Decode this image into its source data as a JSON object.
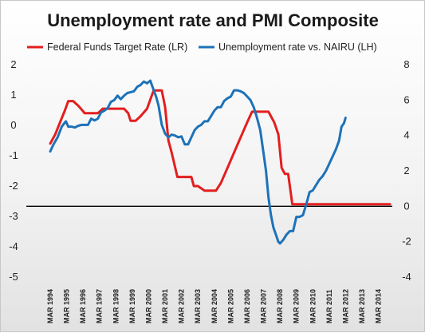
{
  "chart_data": {
    "type": "line",
    "title": "Unemployment rate and PMI Composite",
    "x": [
      "MAR 1994",
      "MAR 1995",
      "MAR 1996",
      "MAR 1997",
      "MAR 1998",
      "MAR 1999",
      "MAR 2000",
      "MAR 2001",
      "MAR 2002",
      "MAR 2003",
      "MAR 2004",
      "MAR 2005",
      "MAR 2006",
      "MAR 2007",
      "MAR 2008",
      "MAR 2009",
      "MAR 2010",
      "MAR 2011",
      "MAR 2012",
      "MAR 2013",
      "MAR 2014"
    ],
    "left_axis": {
      "ticks": [
        "2",
        "1",
        "0",
        "-1",
        "-2",
        "-3",
        "-4",
        "-5"
      ],
      "ylim": [
        -5,
        2
      ]
    },
    "right_axis": {
      "ticks": [
        "8",
        "6",
        "4",
        "2",
        "0",
        "-2",
        "-4"
      ],
      "ylim": [
        -4,
        8
      ]
    },
    "zero_line_right": 0,
    "series": [
      {
        "name": "Federal Funds Target Rate (LR)",
        "axis": "left",
        "color": "#e31e1e",
        "points": [
          [
            1994.0,
            -0.6
          ],
          [
            1994.3,
            -0.3
          ],
          [
            1994.6,
            0.1
          ],
          [
            1994.9,
            0.5
          ],
          [
            1995.1,
            0.8
          ],
          [
            1995.4,
            0.8
          ],
          [
            1995.7,
            0.65
          ],
          [
            1995.95,
            0.5
          ],
          [
            1996.1,
            0.4
          ],
          [
            1996.5,
            0.4
          ],
          [
            1996.9,
            0.4
          ],
          [
            1997.2,
            0.55
          ],
          [
            1997.6,
            0.55
          ],
          [
            1997.9,
            0.55
          ],
          [
            1998.2,
            0.55
          ],
          [
            1998.5,
            0.55
          ],
          [
            1998.75,
            0.4
          ],
          [
            1998.9,
            0.15
          ],
          [
            1999.2,
            0.15
          ],
          [
            1999.5,
            0.3
          ],
          [
            1999.9,
            0.55
          ],
          [
            2000.1,
            0.85
          ],
          [
            2000.3,
            1.15
          ],
          [
            2000.8,
            1.15
          ],
          [
            2001.0,
            0.6
          ],
          [
            2001.2,
            -0.5
          ],
          [
            2001.4,
            -0.9
          ],
          [
            2001.75,
            -1.7
          ],
          [
            2002.0,
            -1.7
          ],
          [
            2002.3,
            -1.7
          ],
          [
            2002.6,
            -1.7
          ],
          [
            2002.75,
            -2.0
          ],
          [
            2003.0,
            -2.0
          ],
          [
            2003.4,
            -2.15
          ],
          [
            2003.8,
            -2.15
          ],
          [
            2004.1,
            -2.15
          ],
          [
            2004.4,
            -1.9
          ],
          [
            2004.8,
            -1.4
          ],
          [
            2005.2,
            -0.9
          ],
          [
            2005.6,
            -0.4
          ],
          [
            2006.0,
            0.1
          ],
          [
            2006.3,
            0.45
          ],
          [
            2006.6,
            0.45
          ],
          [
            2007.0,
            0.45
          ],
          [
            2007.3,
            0.45
          ],
          [
            2007.65,
            0.1
          ],
          [
            2007.9,
            -0.3
          ],
          [
            2008.1,
            -1.4
          ],
          [
            2008.3,
            -1.6
          ],
          [
            2008.5,
            -1.6
          ],
          [
            2008.75,
            -2.6
          ],
          [
            2009.0,
            -2.6
          ],
          [
            2010.0,
            -2.6
          ],
          [
            2011.0,
            -2.6
          ],
          [
            2012.0,
            -2.6
          ],
          [
            2013.0,
            -2.6
          ],
          [
            2014.0,
            -2.6
          ],
          [
            2014.7,
            -2.6
          ]
        ]
      },
      {
        "name": "Unemployment rate vs. NAIRU (LH)",
        "axis": "right",
        "color": "#1d72b8",
        "points": [
          [
            1994.0,
            3.1
          ],
          [
            1994.2,
            3.5
          ],
          [
            1994.45,
            3.9
          ],
          [
            1994.7,
            4.5
          ],
          [
            1994.95,
            4.8
          ],
          [
            1995.1,
            4.5
          ],
          [
            1995.3,
            4.5
          ],
          [
            1995.5,
            4.45
          ],
          [
            1995.7,
            4.55
          ],
          [
            1995.9,
            4.6
          ],
          [
            1996.1,
            4.6
          ],
          [
            1996.3,
            4.6
          ],
          [
            1996.5,
            4.95
          ],
          [
            1996.7,
            4.85
          ],
          [
            1996.9,
            4.95
          ],
          [
            1997.1,
            5.3
          ],
          [
            1997.3,
            5.4
          ],
          [
            1997.5,
            5.55
          ],
          [
            1997.7,
            5.9
          ],
          [
            1997.9,
            6.0
          ],
          [
            1998.1,
            6.25
          ],
          [
            1998.3,
            6.05
          ],
          [
            1998.5,
            6.25
          ],
          [
            1998.7,
            6.4
          ],
          [
            1998.9,
            6.45
          ],
          [
            1999.1,
            6.5
          ],
          [
            1999.3,
            6.75
          ],
          [
            1999.5,
            6.85
          ],
          [
            1999.7,
            7.05
          ],
          [
            1999.9,
            6.95
          ],
          [
            2000.1,
            7.1
          ],
          [
            2000.25,
            6.7
          ],
          [
            2000.45,
            6.2
          ],
          [
            2000.6,
            5.7
          ],
          [
            2000.8,
            4.6
          ],
          [
            2001.0,
            4.1
          ],
          [
            2001.2,
            3.9
          ],
          [
            2001.4,
            4.05
          ],
          [
            2001.6,
            4.0
          ],
          [
            2001.8,
            3.9
          ],
          [
            2002.0,
            3.95
          ],
          [
            2002.2,
            3.5
          ],
          [
            2002.4,
            3.5
          ],
          [
            2002.6,
            3.9
          ],
          [
            2002.8,
            4.3
          ],
          [
            2003.0,
            4.5
          ],
          [
            2003.2,
            4.6
          ],
          [
            2003.4,
            4.8
          ],
          [
            2003.6,
            4.8
          ],
          [
            2003.8,
            5.1
          ],
          [
            2004.0,
            5.4
          ],
          [
            2004.2,
            5.6
          ],
          [
            2004.4,
            5.6
          ],
          [
            2004.6,
            5.95
          ],
          [
            2004.8,
            6.1
          ],
          [
            2005.0,
            6.2
          ],
          [
            2005.2,
            6.55
          ],
          [
            2005.4,
            6.55
          ],
          [
            2005.6,
            6.5
          ],
          [
            2005.8,
            6.4
          ],
          [
            2006.0,
            6.2
          ],
          [
            2006.2,
            6.0
          ],
          [
            2006.4,
            5.6
          ],
          [
            2006.6,
            5.0
          ],
          [
            2006.8,
            4.3
          ],
          [
            2007.0,
            3.0
          ],
          [
            2007.15,
            2.0
          ],
          [
            2007.3,
            0.5
          ],
          [
            2007.45,
            -0.5
          ],
          [
            2007.6,
            -1.2
          ],
          [
            2007.75,
            -1.6
          ],
          [
            2007.9,
            -2.0
          ],
          [
            2008.0,
            -2.1
          ],
          [
            2008.2,
            -1.9
          ],
          [
            2008.4,
            -1.6
          ],
          [
            2008.6,
            -1.4
          ],
          [
            2008.8,
            -1.4
          ],
          [
            2009.0,
            -0.6
          ],
          [
            2009.2,
            -0.6
          ],
          [
            2009.4,
            -0.5
          ],
          [
            2009.6,
            0.1
          ],
          [
            2009.8,
            0.8
          ],
          [
            2010.0,
            0.9
          ],
          [
            2010.2,
            1.2
          ],
          [
            2010.4,
            1.5
          ],
          [
            2010.6,
            1.7
          ],
          [
            2010.8,
            2.0
          ],
          [
            2011.0,
            2.4
          ],
          [
            2011.2,
            2.8
          ],
          [
            2011.4,
            3.2
          ],
          [
            2011.6,
            3.7
          ],
          [
            2011.75,
            4.5
          ],
          [
            2011.9,
            4.7
          ],
          [
            2012.0,
            5.0
          ]
        ]
      }
    ],
    "legend_position": "top"
  }
}
